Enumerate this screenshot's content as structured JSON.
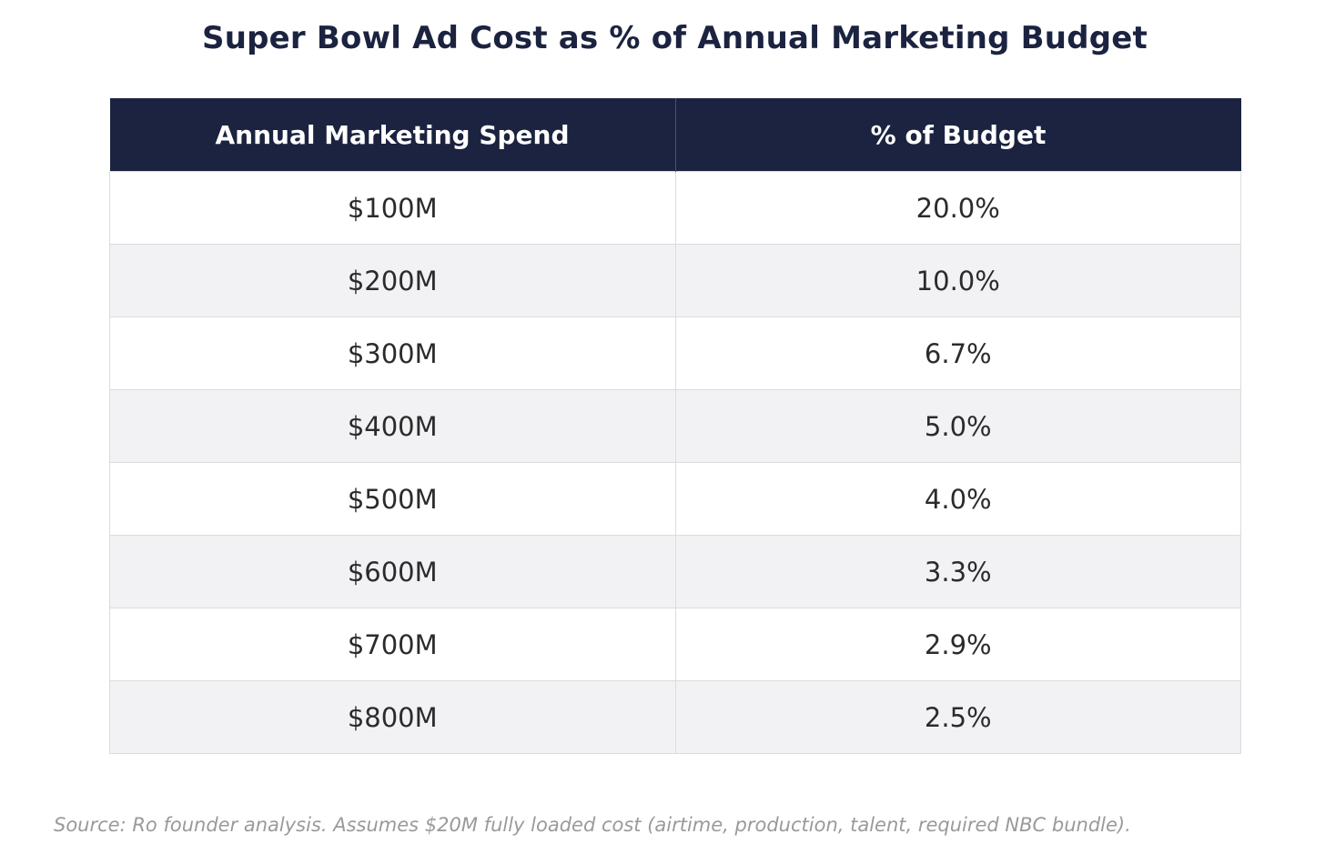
{
  "chart_data": {
    "type": "table",
    "title": "Super Bowl Ad Cost as % of Annual Marketing Budget",
    "columns": [
      "Annual Marketing Spend",
      "% of Budget"
    ],
    "rows": [
      [
        "$100M",
        "20.0%"
      ],
      [
        "$200M",
        "10.0%"
      ],
      [
        "$300M",
        "6.7%"
      ],
      [
        "$400M",
        "5.0%"
      ],
      [
        "$500M",
        "4.0%"
      ],
      [
        "$600M",
        "3.3%"
      ],
      [
        "$700M",
        "2.9%"
      ],
      [
        "$800M",
        "2.5%"
      ]
    ],
    "source": "Source: Ro founder analysis. Assumes $20M fully loaded cost (airtime, production, talent, required NBC bundle)."
  },
  "colors": {
    "header_bg": "#1b2340",
    "header_text": "#ffffff",
    "row_alt_bg": "#f2f2f4",
    "source_text": "#9a9a9a"
  }
}
